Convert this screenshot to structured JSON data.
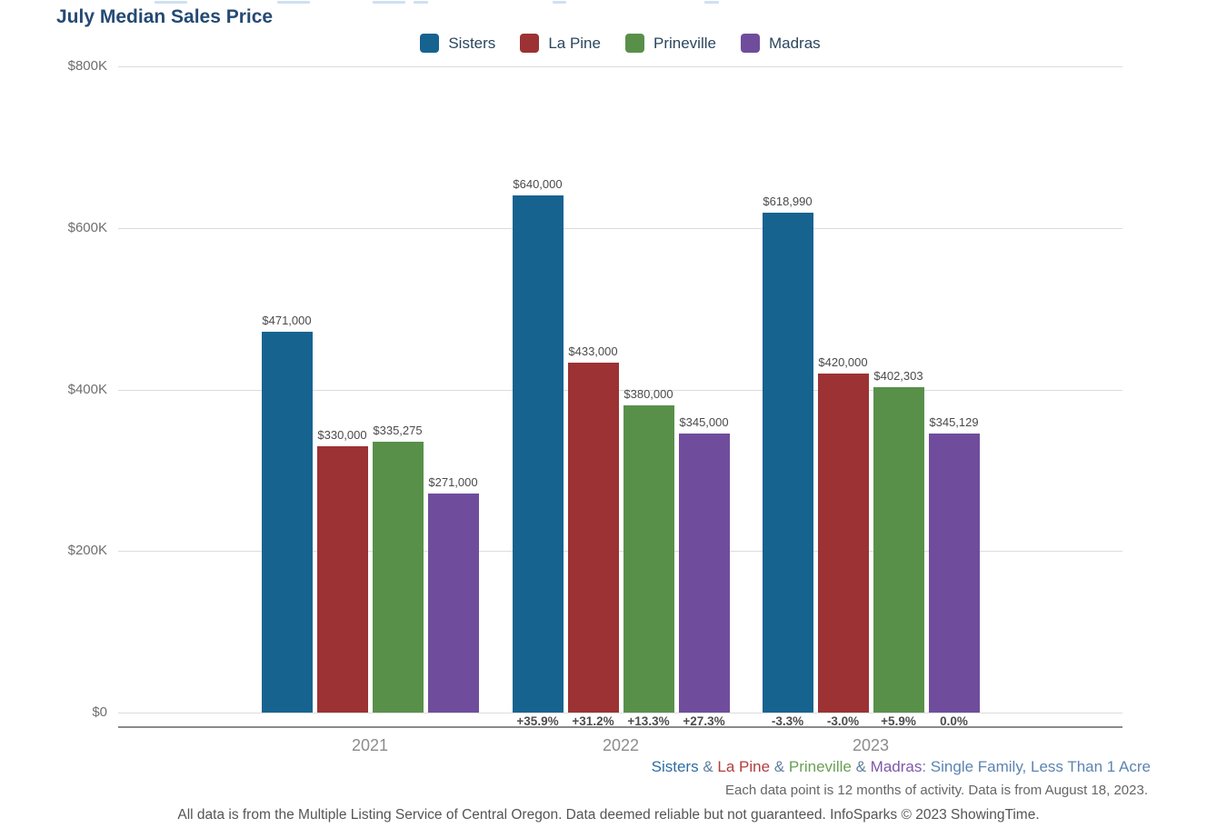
{
  "title": "July Median Sales Price",
  "legend": [
    {
      "label": "Sisters",
      "color": "#166390"
    },
    {
      "label": "La Pine",
      "color": "#9C3233"
    },
    {
      "label": "Prineville",
      "color": "#58904A"
    },
    {
      "label": "Madras",
      "color": "#6F4D9C"
    }
  ],
  "chart_data": {
    "type": "bar",
    "title": "July Median Sales Price",
    "categories": [
      "2021",
      "2022",
      "2023"
    ],
    "series": [
      {
        "name": "Sisters",
        "color": "#166390",
        "values": [
          471000,
          640000,
          618990
        ],
        "labels": [
          "$471,000",
          "$640,000",
          "$618,990"
        ],
        "pct_change": [
          null,
          "+35.9%",
          "-3.3%"
        ]
      },
      {
        "name": "La Pine",
        "color": "#9C3233",
        "values": [
          330000,
          433000,
          420000
        ],
        "labels": [
          "$330,000",
          "$433,000",
          "$420,000"
        ],
        "pct_change": [
          null,
          "+31.2%",
          "-3.0%"
        ]
      },
      {
        "name": "Prineville",
        "color": "#58904A",
        "values": [
          335275,
          380000,
          402303
        ],
        "labels": [
          "$335,275",
          "$380,000",
          "$402,303"
        ],
        "pct_change": [
          null,
          "+13.3%",
          "+5.9%"
        ]
      },
      {
        "name": "Madras",
        "color": "#6F4D9C",
        "values": [
          271000,
          345000,
          345129
        ],
        "labels": [
          "$271,000",
          "$345,000",
          "$345,129"
        ],
        "pct_change": [
          null,
          "+27.3%",
          "0.0%"
        ]
      }
    ],
    "ylabel": "",
    "xlabel": "",
    "ylim": [
      0,
      800000
    ],
    "y_ticks": [
      "$800K",
      "$600K",
      "$400K",
      "$200K",
      "$0"
    ],
    "grid": true,
    "legend_position": "top"
  },
  "footer": {
    "line1": [
      {
        "text": "Sisters",
        "color": "#2E6DA3"
      },
      {
        "text": " & ",
        "color": "#5F7E9E"
      },
      {
        "text": "La Pine",
        "color": "#B23E3F"
      },
      {
        "text": " & ",
        "color": "#5F7E9E"
      },
      {
        "text": "Prineville",
        "color": "#69A054"
      },
      {
        "text": " & ",
        "color": "#5F7E9E"
      },
      {
        "text": "Madras",
        "color": "#7F57AB"
      },
      {
        "text": ": Single Family, Less Than 1 Acre",
        "color": "#5C84B1"
      }
    ],
    "line2": "Each data point is 12 months of activity. Data is from August 18, 2023.",
    "line3": "All data is from the Multiple Listing Service of Central Oregon. Data deemed reliable but not guaranteed. InfoSparks © 2023 ShowingTime."
  }
}
